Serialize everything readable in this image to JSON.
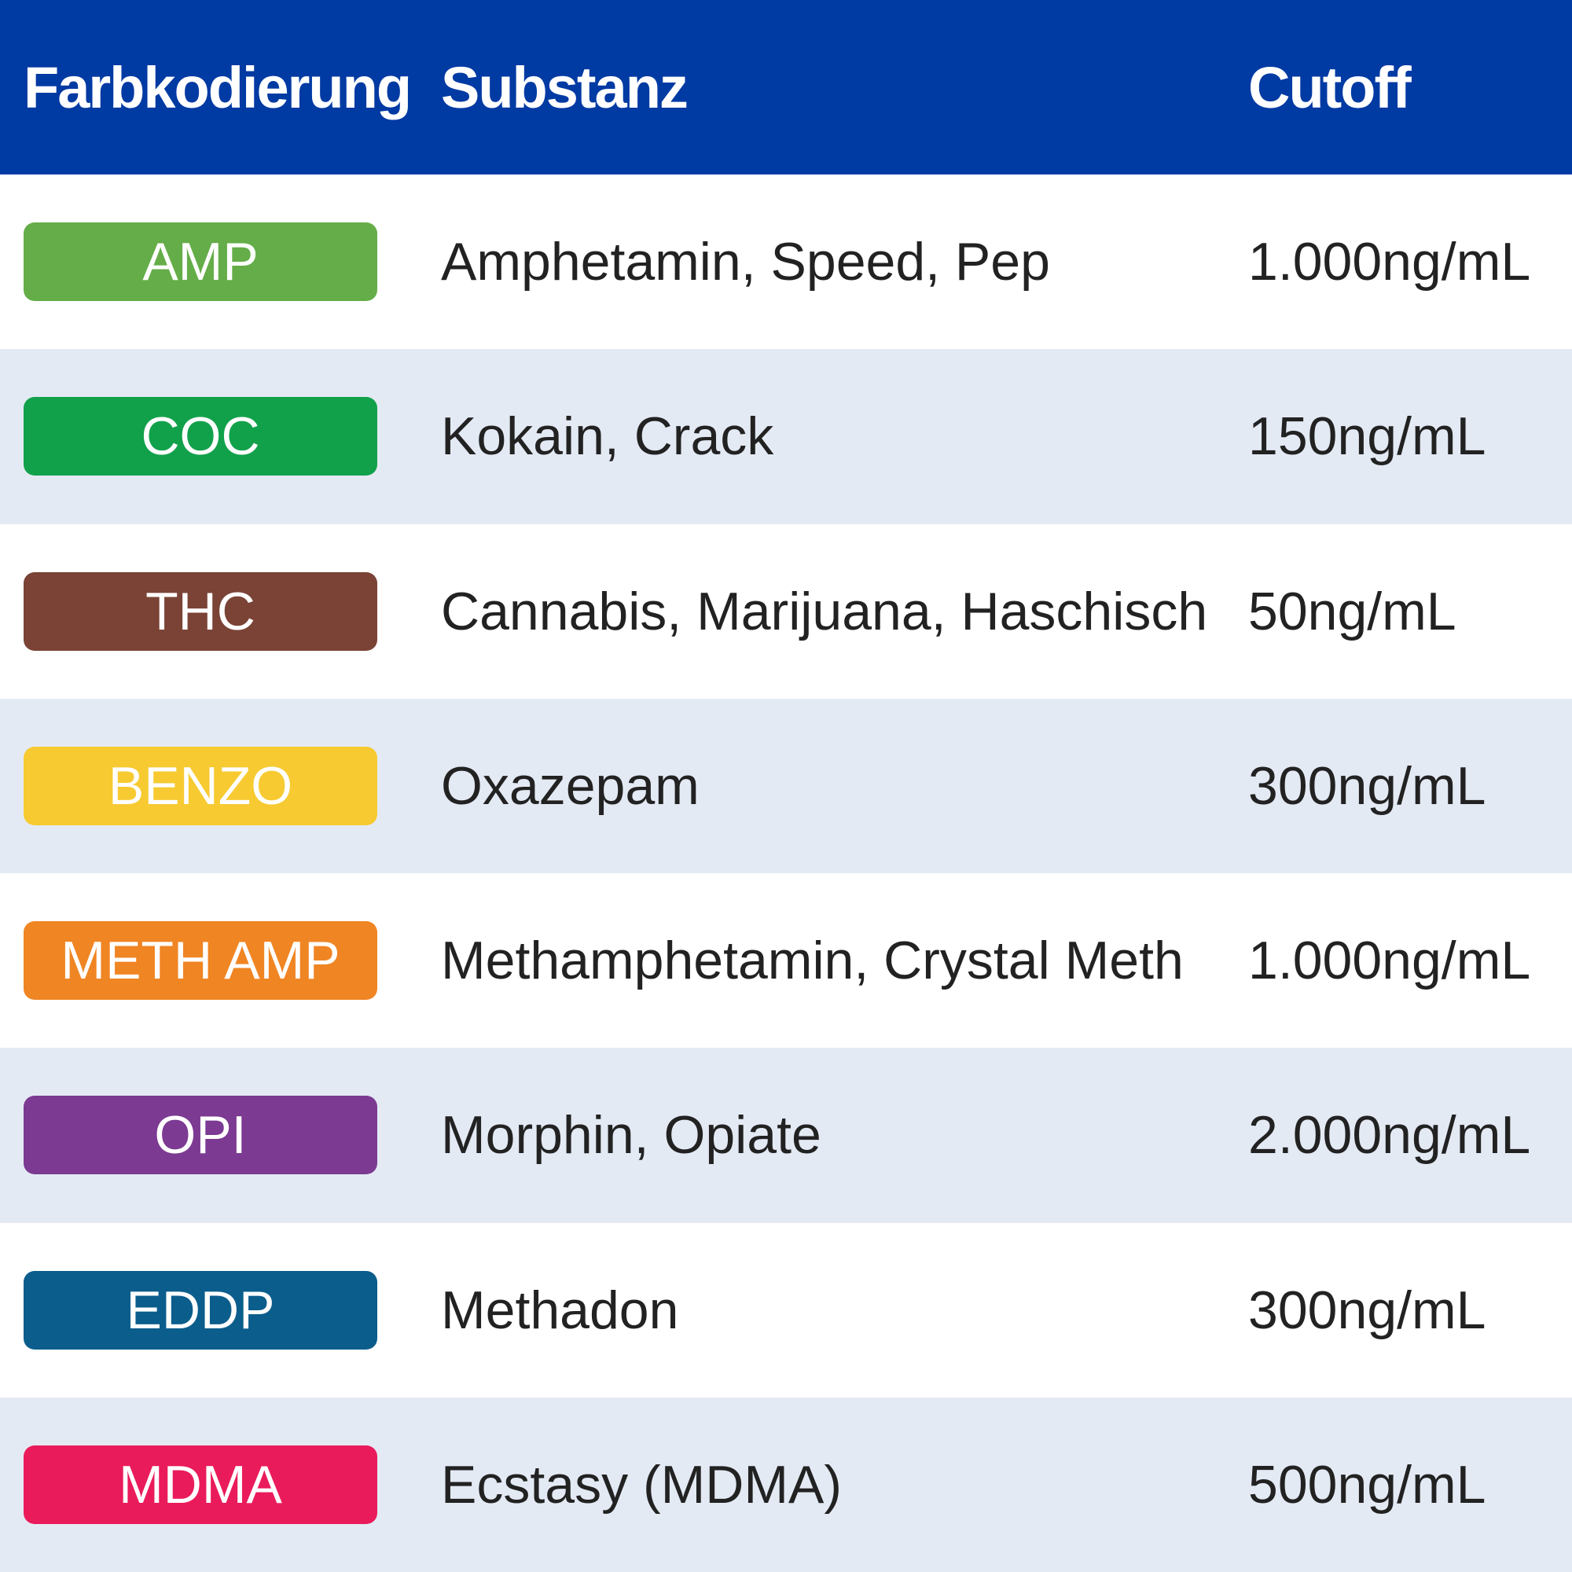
{
  "header": {
    "col_color": "Farbkodierung",
    "col_substance": "Substanz",
    "col_cutoff": "Cutoff"
  },
  "colors": {
    "header_bg": "#003aa3",
    "row_alt_bg": "#e4eaf4"
  },
  "rows": [
    {
      "code": "AMP",
      "color": "#64ad48",
      "substance": "Amphetamin, Speed, Pep",
      "cutoff": "1.000ng/mL"
    },
    {
      "code": "COC",
      "color": "#12a14b",
      "substance": "Kokain, Crack",
      "cutoff": "150ng/mL"
    },
    {
      "code": "THC",
      "color": "#7a4336",
      "substance": "Cannabis, Marijuana, Haschisch",
      "cutoff": "50ng/mL"
    },
    {
      "code": "BENZO",
      "color": "#f7ca31",
      "substance": "Oxazepam",
      "cutoff": "300ng/mL"
    },
    {
      "code": "METH AMP",
      "color": "#f08523",
      "substance": "Methamphetamin, Crystal Meth",
      "cutoff": "1.000ng/mL"
    },
    {
      "code": "OPI",
      "color": "#7c3a92",
      "substance": "Morphin, Opiate",
      "cutoff": "2.000ng/mL"
    },
    {
      "code": "EDDP",
      "color": "#0b5d8c",
      "substance": "Methadon",
      "cutoff": "300ng/mL"
    },
    {
      "code": "MDMA",
      "color": "#ea1b5b",
      "substance": "Ecstasy (MDMA)",
      "cutoff": "500ng/mL"
    }
  ]
}
